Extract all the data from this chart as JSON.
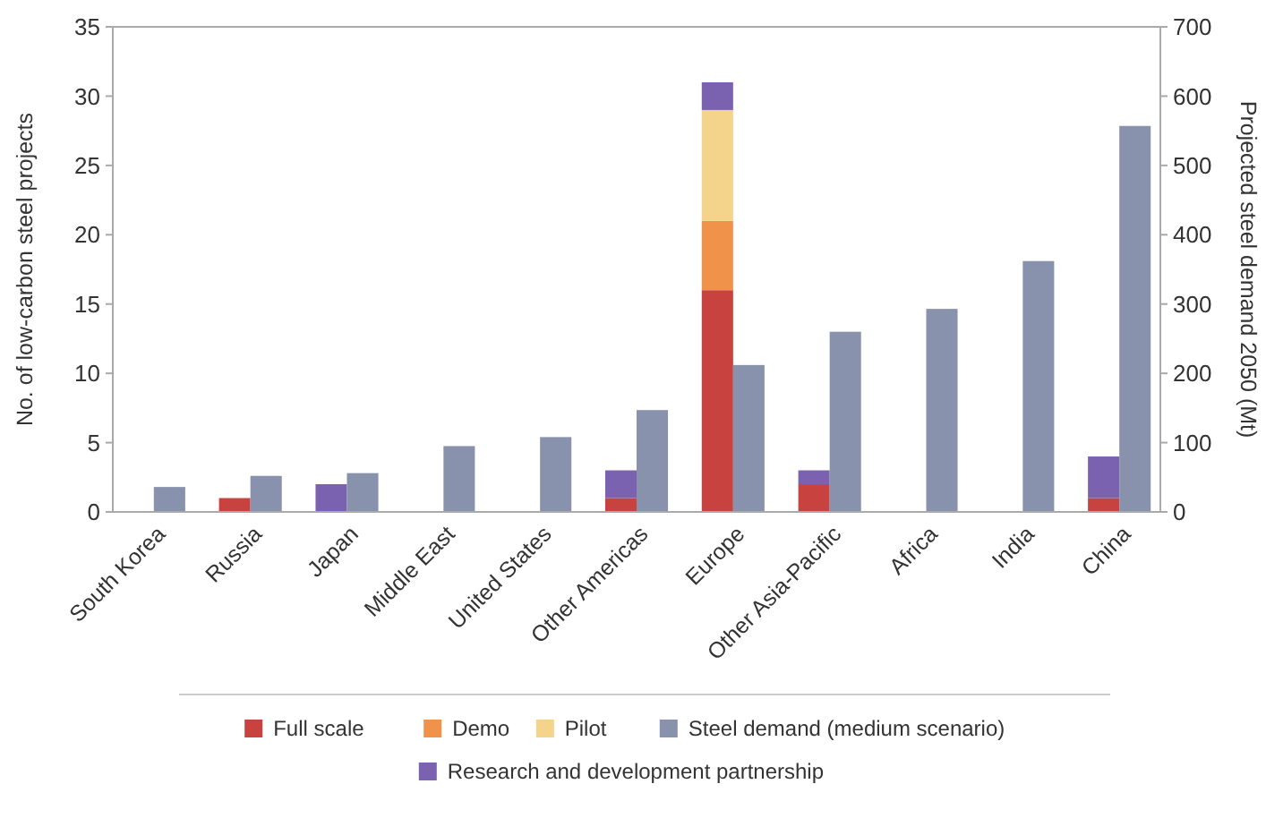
{
  "chart_data": {
    "type": "bar",
    "stacked": true,
    "ylabel": "No. of low-carbon steel projects",
    "y2label": "Projected steel demand 2050 (Mt)",
    "categories": [
      "South Korea",
      "Russia",
      "Japan",
      "Middle East",
      "United States",
      "Other Americas",
      "Europe",
      "Other Asia-Pacific",
      "Africa",
      "India",
      "China"
    ],
    "ylim": [
      0,
      35
    ],
    "yticks": [
      0,
      5,
      10,
      15,
      20,
      25,
      30,
      35
    ],
    "y2lim": [
      0,
      700
    ],
    "y2ticks": [
      0,
      100,
      200,
      300,
      400,
      500,
      600,
      700
    ],
    "grid": false,
    "legend": "bottom",
    "series": [
      {
        "name": "Full scale",
        "color": "#c8423f",
        "values": [
          0,
          1,
          0,
          0,
          0,
          1,
          16,
          2,
          0,
          0,
          1
        ]
      },
      {
        "name": "Demo",
        "color": "#f0924a",
        "values": [
          0,
          0,
          0,
          0,
          0,
          0,
          5,
          0,
          0,
          0,
          0
        ]
      },
      {
        "name": "Pilot",
        "color": "#f3d48a",
        "values": [
          0,
          0,
          0,
          0,
          0,
          0,
          8,
          0,
          0,
          0,
          0
        ]
      },
      {
        "name": "Steel demand (medium scenario)",
        "color": "#8892ad",
        "axis": "y2",
        "values": [
          36,
          52,
          56,
          95,
          108,
          147,
          212,
          260,
          293,
          362,
          557
        ]
      },
      {
        "name": "Research and development partnership",
        "color": "#7a62b0",
        "values": [
          0,
          0,
          2,
          0,
          0,
          2,
          2,
          1,
          0,
          0,
          3
        ]
      }
    ]
  }
}
